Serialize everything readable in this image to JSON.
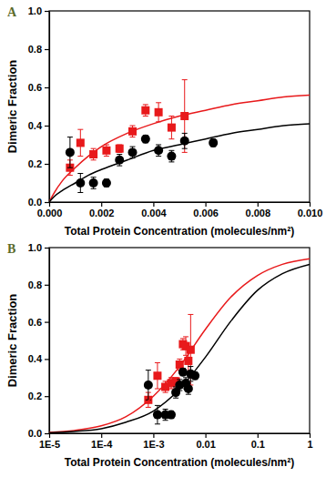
{
  "chart_data": [
    {
      "type": "scatter",
      "panel_label": "A",
      "x_label": "Total Protein Concentration (molecules/nm²)",
      "y_label": "Dimeric Fraction",
      "xlim": [
        0,
        0.01
      ],
      "ylim": [
        0,
        1
      ],
      "xticks": [
        {
          "value": 0,
          "label": "0.000"
        },
        {
          "value": 0.002,
          "label": "0.002"
        },
        {
          "value": 0.004,
          "label": "0.004"
        },
        {
          "value": 0.006,
          "label": "0.006"
        },
        {
          "value": 0.008,
          "label": "0.008"
        },
        {
          "value": 0.01,
          "label": "0.010"
        }
      ],
      "yticks": [
        {
          "value": 0,
          "label": "0.0"
        },
        {
          "value": 0.2,
          "label": "0.2"
        },
        {
          "value": 0.4,
          "label": "0.4"
        },
        {
          "value": 0.6,
          "label": "0.6"
        },
        {
          "value": 0.8,
          "label": "0.8"
        },
        {
          "value": 1,
          "label": "1.0"
        }
      ],
      "series": [
        {
          "type": "scatter",
          "color": "#e8191b",
          "marker": "square",
          "x": [
            0.0008,
            0.0012,
            0.0017,
            0.0022,
            0.0027,
            0.0032,
            0.0037,
            0.0042,
            0.0047,
            0.0052
          ],
          "values": [
            0.18,
            0.31,
            0.25,
            0.27,
            0.28,
            0.37,
            0.48,
            0.47,
            0.39,
            0.45
          ],
          "errors": [
            0.04,
            0.07,
            0.03,
            0.03,
            0.02,
            0.03,
            0.03,
            0.05,
            0.06,
            0.19
          ]
        },
        {
          "type": "scatter",
          "color": "#000000",
          "marker": "circle",
          "x": [
            0.0008,
            0.0012,
            0.0017,
            0.0022,
            0.0027,
            0.0032,
            0.0037,
            0.0042,
            0.0047,
            0.0052,
            0.0063
          ],
          "values": [
            0.26,
            0.1,
            0.1,
            0.1,
            0.22,
            0.26,
            0.33,
            0.27,
            0.24,
            0.32,
            0.31
          ],
          "errors": [
            0.08,
            0.05,
            0.03,
            0.02,
            0.03,
            0.03,
            0.02,
            0.03,
            0.03,
            0.04,
            0.02
          ]
        },
        {
          "type": "line",
          "color": "#e8191b",
          "x": [
            0,
            0.0002,
            0.0005,
            0.001,
            0.0015,
            0.002,
            0.003,
            0.004,
            0.005,
            0.006,
            0.007,
            0.008,
            0.009,
            0.01
          ],
          "values": [
            0,
            0.05,
            0.11,
            0.18,
            0.24,
            0.29,
            0.36,
            0.41,
            0.45,
            0.48,
            0.51,
            0.53,
            0.55,
            0.56
          ]
        },
        {
          "type": "line",
          "color": "#000000",
          "x": [
            0,
            0.0002,
            0.0005,
            0.001,
            0.0015,
            0.002,
            0.003,
            0.004,
            0.005,
            0.006,
            0.007,
            0.008,
            0.009,
            0.01
          ],
          "values": [
            0,
            0.03,
            0.06,
            0.1,
            0.14,
            0.17,
            0.22,
            0.27,
            0.3,
            0.33,
            0.36,
            0.38,
            0.4,
            0.41
          ]
        }
      ]
    },
    {
      "type": "scatter",
      "panel_label": "B",
      "log": "x",
      "x_label": "Total Protein Concentration (molecules/nm²)",
      "y_label": "Dimeric Fraction",
      "xlim": [
        1e-05,
        1
      ],
      "ylim": [
        0,
        1
      ],
      "xticks": [
        {
          "value": 1e-05,
          "label": "1E-5"
        },
        {
          "value": 0.0001,
          "label": "1E-4"
        },
        {
          "value": 0.001,
          "label": "1E-3"
        },
        0.01,
        0.1,
        1
      ],
      "yticks": [
        {
          "value": 0,
          "label": "0.0"
        },
        {
          "value": 0.2,
          "label": "0.2"
        },
        {
          "value": 0.4,
          "label": "0.4"
        },
        {
          "value": 0.6,
          "label": "0.6"
        },
        {
          "value": 0.8,
          "label": "0.8"
        },
        {
          "value": 1,
          "label": "1.0"
        }
      ],
      "series": [
        {
          "type": "scatter",
          "color": "#e8191b",
          "marker": "square",
          "x": [
            0.0008,
            0.0012,
            0.0017,
            0.0022,
            0.0027,
            0.0032,
            0.0037,
            0.0042,
            0.0047,
            0.0052
          ],
          "values": [
            0.18,
            0.31,
            0.25,
            0.27,
            0.28,
            0.37,
            0.48,
            0.47,
            0.39,
            0.45
          ],
          "errors": [
            0.04,
            0.07,
            0.03,
            0.03,
            0.02,
            0.03,
            0.03,
            0.05,
            0.06,
            0.19
          ]
        },
        {
          "type": "scatter",
          "color": "#000000",
          "marker": "circle",
          "x": [
            0.0008,
            0.0012,
            0.0017,
            0.0022,
            0.0027,
            0.0032,
            0.0037,
            0.0042,
            0.0047,
            0.0052,
            0.0063
          ],
          "values": [
            0.26,
            0.1,
            0.1,
            0.1,
            0.22,
            0.26,
            0.33,
            0.27,
            0.24,
            0.32,
            0.31
          ],
          "errors": [
            0.08,
            0.05,
            0.03,
            0.02,
            0.03,
            0.03,
            0.02,
            0.03,
            0.03,
            0.04,
            0.02
          ]
        },
        {
          "type": "line",
          "color": "#e8191b",
          "x": [
            1e-05,
            3e-05,
            0.0001,
            0.0003,
            0.001,
            0.003,
            0.01,
            0.03,
            0.1,
            0.3,
            1
          ],
          "values": [
            0.005,
            0.015,
            0.04,
            0.09,
            0.2,
            0.35,
            0.56,
            0.73,
            0.85,
            0.91,
            0.94
          ]
        },
        {
          "type": "line",
          "color": "#000000",
          "x": [
            1e-05,
            3e-05,
            0.0001,
            0.0003,
            0.001,
            0.003,
            0.01,
            0.03,
            0.1,
            0.3,
            1
          ],
          "values": [
            0.003,
            0.01,
            0.025,
            0.06,
            0.12,
            0.23,
            0.41,
            0.6,
            0.77,
            0.86,
            0.91
          ]
        }
      ]
    }
  ]
}
